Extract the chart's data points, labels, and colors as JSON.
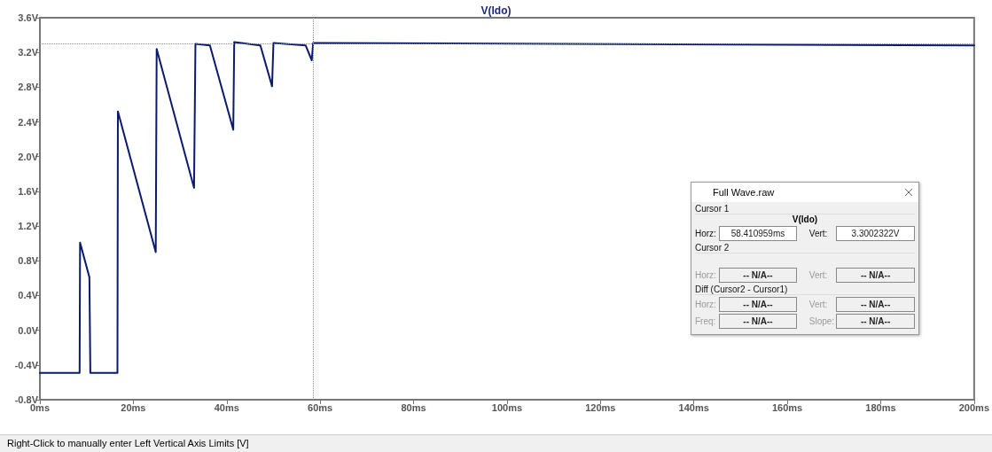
{
  "chart_data": {
    "type": "line",
    "title": "V(ldo)",
    "x": [
      0,
      8.5,
      8.6,
      10.6,
      10.8,
      16.6,
      16.7,
      24.8,
      25.0,
      33.0,
      33.3,
      36.4,
      41.4,
      41.6,
      47.2,
      49.7,
      50.0,
      56.9,
      58.2,
      58.5,
      200
    ],
    "series": [
      {
        "color": "#0a1a6e",
        "values": [
          -0.49,
          -0.49,
          1.01,
          0.61,
          -0.49,
          -0.49,
          2.52,
          0.9,
          3.24,
          1.64,
          3.3,
          3.28,
          2.31,
          3.32,
          3.28,
          2.81,
          3.31,
          3.28,
          3.11,
          3.31,
          3.28
        ]
      }
    ],
    "xlim": [
      0,
      200
    ],
    "xticks": [
      {
        "value": 0,
        "label": "0ms"
      },
      {
        "value": 20,
        "label": "20ms"
      },
      {
        "value": 40,
        "label": "40ms"
      },
      {
        "value": 60,
        "label": "60ms"
      },
      {
        "value": 80,
        "label": "80ms"
      },
      {
        "value": 100,
        "label": "100ms"
      },
      {
        "value": 120,
        "label": "120ms"
      },
      {
        "value": 140,
        "label": "140ms"
      },
      {
        "value": 160,
        "label": "160ms"
      },
      {
        "value": 180,
        "label": "180ms"
      },
      {
        "value": 200,
        "label": "200ms"
      }
    ],
    "ylim": [
      -0.8,
      3.6
    ],
    "yticks": [
      {
        "value": -0.8,
        "label": "-0.8V"
      },
      {
        "value": -0.4,
        "label": "-0.4V"
      },
      {
        "value": 0,
        "label": "0.0V"
      },
      {
        "value": 0.4,
        "label": "0.4V"
      },
      {
        "value": 0.8,
        "label": "0.8V"
      },
      {
        "value": 1.2,
        "label": "1.2V"
      },
      {
        "value": 1.6,
        "label": "1.6V"
      },
      {
        "value": 2.0,
        "label": "2.0V"
      },
      {
        "value": 2.4,
        "label": "2.4V"
      },
      {
        "value": 2.8,
        "label": "2.8V"
      },
      {
        "value": 3.2,
        "label": "3.2V"
      },
      {
        "value": 3.6,
        "label": "3.6V"
      }
    ],
    "ref_lines": [
      {
        "axis": "x",
        "value": 58.41,
        "line_style": "dotted",
        "color": "#888888"
      },
      {
        "axis": "y",
        "value": 3.3,
        "line_style": "dotted",
        "color": "#888888"
      }
    ],
    "grid": false,
    "line_style": "solid",
    "annotations": [
      "Right-Click to manually enter Left Vertical Axis Limits [V]",
      "Full Wave.raw",
      "Cursor 1",
      "V(ldo)",
      "Horz:",
      "58.410959ms",
      "Vert:",
      "3.3002322V",
      "Cursor 2",
      "Horz:",
      "-- N/A--",
      "Vert:",
      "-- N/A--",
      "Diff (Cursor2 - Cursor1)",
      "Horz:",
      "-- N/A--",
      "Vert:",
      "-- N/A--",
      "Freq:",
      "-- N/A--",
      "Slope:",
      "-- N/A--"
    ]
  }
}
